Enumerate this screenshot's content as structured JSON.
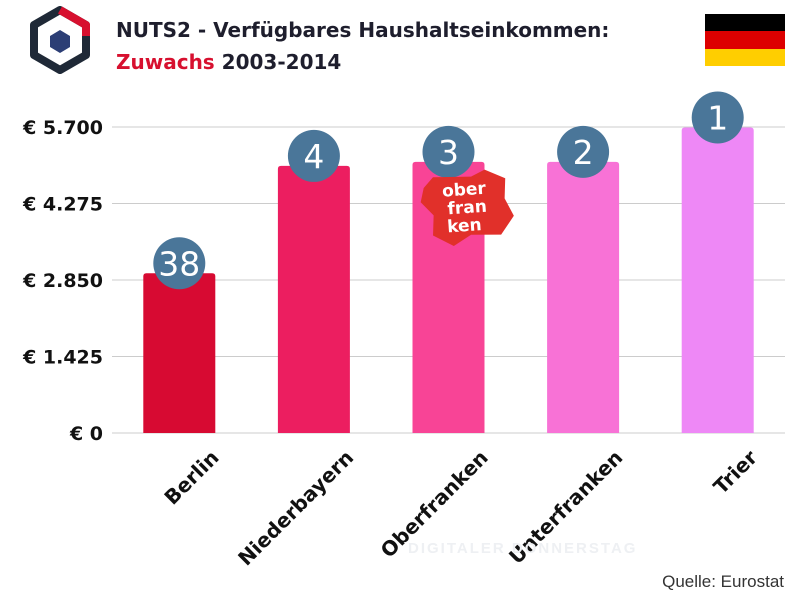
{
  "logo_icon": "hexagon-cube-logo-icon",
  "header": {
    "title_line1": "NUTS2 - Verfügbares Haushaltseinkommen:",
    "title_accent": "Zuwachs",
    "title_rest": " 2003-2014"
  },
  "flag": {
    "icon": "germany-flag-icon",
    "stripes": [
      "#000000",
      "#dd0000",
      "#ffce00"
    ]
  },
  "regional_logo": {
    "text": [
      "ober",
      "fran",
      "ken"
    ],
    "color": "#e1302a"
  },
  "watermark": "DIGITALER DONNERSTAG",
  "source": "Quelle: Eurostat",
  "chart_data": {
    "type": "bar",
    "title": "NUTS2 - Verfügbares Haushaltseinkommen: Zuwachs 2003-2014",
    "xlabel": "",
    "ylabel": "",
    "categories": [
      "Berlin",
      "Niederbayern",
      "Oberfranken",
      "Unterfranken",
      "Trier"
    ],
    "values": [
      2975,
      4975,
      5050,
      5050,
      5690
    ],
    "ranks": [
      "38",
      "4",
      "3",
      "2",
      "1"
    ],
    "bar_colors": [
      "#d70a32",
      "#ec1e60",
      "#f84496",
      "#f872d6",
      "#ee88f6"
    ],
    "rank_badge_color": "#4a7699",
    "ylim": [
      0,
      5700
    ],
    "yticks": [
      0,
      1425,
      2850,
      4275,
      5700
    ],
    "ytick_labels": [
      "€ 0",
      "€ 1.425",
      "€ 2.850",
      "€ 4.275",
      "€ 5.700"
    ],
    "grid": true
  }
}
